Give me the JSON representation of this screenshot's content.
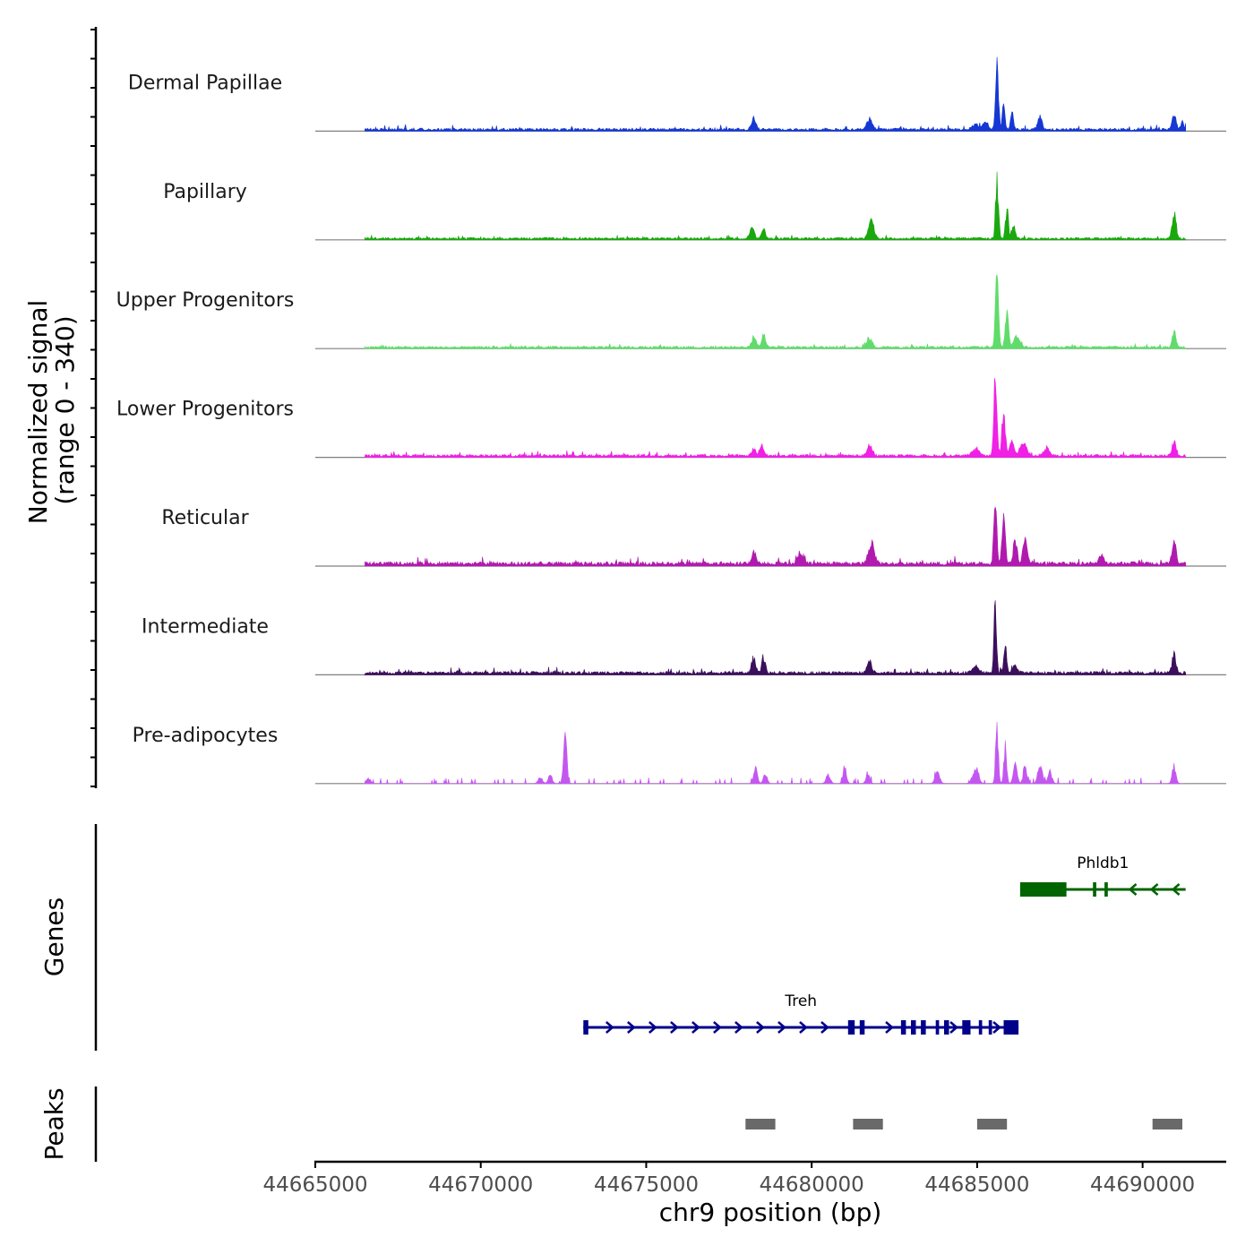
{
  "chart_data": {
    "type": "area",
    "y_axis_title": "Normalized signal",
    "y_axis_subtitle": "(range 0 - 340)",
    "y_range": [
      0,
      340
    ],
    "x_axis_title": "chr9 position (bp)",
    "x_range": [
      44665000,
      44692500
    ],
    "x_ticks": [
      44665000,
      44670000,
      44675000,
      44680000,
      44685000,
      44690000
    ],
    "x_tick_labels": [
      "44665000",
      "44670000",
      "44675000",
      "44680000",
      "44685000",
      "44690000"
    ],
    "signal_span": [
      44666500,
      44691300
    ],
    "tracks": [
      {
        "name": "Dermal Papillae",
        "color": "#1538d4",
        "baseline": 12,
        "peaks": [
          [
            44678250,
            55,
            90
          ],
          [
            44681750,
            45,
            110
          ],
          [
            44684950,
            25,
            140
          ],
          [
            44685250,
            35,
            110
          ],
          [
            44685600,
            340,
            60
          ],
          [
            44685800,
            150,
            50
          ],
          [
            44686050,
            80,
            60
          ],
          [
            44686900,
            55,
            90
          ],
          [
            44690950,
            70,
            80
          ],
          [
            44691200,
            35,
            70
          ]
        ]
      },
      {
        "name": "Papillary",
        "color": "#1aa80e",
        "baseline": 10,
        "peaks": [
          [
            44678200,
            50,
            90
          ],
          [
            44678550,
            45,
            80
          ],
          [
            44681800,
            90,
            110
          ],
          [
            44685600,
            265,
            60
          ],
          [
            44685900,
            140,
            60
          ],
          [
            44686100,
            60,
            70
          ],
          [
            44690950,
            130,
            80
          ]
        ]
      },
      {
        "name": "Upper Progenitors",
        "color": "#5fdc6a",
        "baseline": 10,
        "peaks": [
          [
            44678250,
            40,
            100
          ],
          [
            44678550,
            55,
            80
          ],
          [
            44681750,
            45,
            110
          ],
          [
            44685600,
            340,
            65
          ],
          [
            44685900,
            150,
            70
          ],
          [
            44686200,
            55,
            120
          ],
          [
            44690950,
            75,
            80
          ]
        ]
      },
      {
        "name": "Lower Progenitors",
        "color": "#f020e6",
        "baseline": 12,
        "peaks": [
          [
            44678250,
            35,
            90
          ],
          [
            44678500,
            50,
            80
          ],
          [
            44681750,
            45,
            110
          ],
          [
            44684950,
            30,
            140
          ],
          [
            44685550,
            400,
            60
          ],
          [
            44685800,
            210,
            70
          ],
          [
            44686050,
            70,
            90
          ],
          [
            44686400,
            55,
            140
          ],
          [
            44687100,
            35,
            120
          ],
          [
            44690950,
            60,
            80
          ]
        ]
      },
      {
        "name": "Reticular",
        "color": "#b01aae",
        "baseline": 18,
        "peaks": [
          [
            44678250,
            55,
            90
          ],
          [
            44679650,
            50,
            110
          ],
          [
            44681800,
            90,
            130
          ],
          [
            44685550,
            330,
            60
          ],
          [
            44685800,
            200,
            70
          ],
          [
            44686150,
            120,
            80
          ],
          [
            44686450,
            125,
            80
          ],
          [
            44688750,
            45,
            90
          ],
          [
            44690950,
            120,
            80
          ]
        ]
      },
      {
        "name": "Intermediate",
        "color": "#3b0f5c",
        "baseline": 14,
        "peaks": [
          [
            44678250,
            60,
            90
          ],
          [
            44678550,
            70,
            80
          ],
          [
            44681750,
            55,
            100
          ],
          [
            44684950,
            30,
            140
          ],
          [
            44685550,
            320,
            55
          ],
          [
            44685850,
            125,
            60
          ],
          [
            44686150,
            45,
            90
          ],
          [
            44690950,
            90,
            80
          ]
        ]
      },
      {
        "name": "Pre-adipocytes",
        "color": "#c457f0",
        "baseline": 0,
        "peaks": [
          [
            44666600,
            25,
            100
          ],
          [
            44671800,
            30,
            90
          ],
          [
            44672100,
            40,
            80
          ],
          [
            44672550,
            245,
            70
          ],
          [
            44678300,
            75,
            80
          ],
          [
            44678600,
            45,
            80
          ],
          [
            44680500,
            40,
            90
          ],
          [
            44681000,
            60,
            80
          ],
          [
            44681700,
            45,
            80
          ],
          [
            44683800,
            50,
            100
          ],
          [
            44684950,
            70,
            120
          ],
          [
            44685600,
            250,
            60
          ],
          [
            44685850,
            170,
            60
          ],
          [
            44686150,
            90,
            80
          ],
          [
            44686450,
            75,
            80
          ],
          [
            44686900,
            80,
            100
          ],
          [
            44687200,
            50,
            90
          ],
          [
            44690950,
            80,
            80
          ]
        ]
      }
    ],
    "genes_label": "Genes",
    "genes": [
      {
        "name": "Phldb1",
        "color": "#006400",
        "strand": "-",
        "start": 44686300,
        "end": 44691300,
        "exons": [
          [
            44686300,
            44687700
          ],
          [
            44688500,
            44688600
          ],
          [
            44688850,
            44688950
          ]
        ]
      },
      {
        "name": "Treh",
        "color": "#00008b",
        "strand": "+",
        "start": 44673100,
        "end": 44686250,
        "exons": [
          [
            44673100,
            44673250
          ],
          [
            44681100,
            44681300
          ],
          [
            44681450,
            44681600
          ],
          [
            44682700,
            44682850
          ],
          [
            44683000,
            44683150
          ],
          [
            44683300,
            44683450
          ],
          [
            44683750,
            44683850
          ],
          [
            44684000,
            44684150
          ],
          [
            44684550,
            44684800
          ],
          [
            44685050,
            44685150
          ],
          [
            44685350,
            44685450
          ],
          [
            44685800,
            44686250
          ]
        ]
      }
    ],
    "peaks_label": "Peaks",
    "peak_regions": [
      [
        44678000,
        44678900
      ],
      [
        44681250,
        44682150
      ],
      [
        44685000,
        44685900
      ],
      [
        44690300,
        44691200
      ]
    ]
  }
}
